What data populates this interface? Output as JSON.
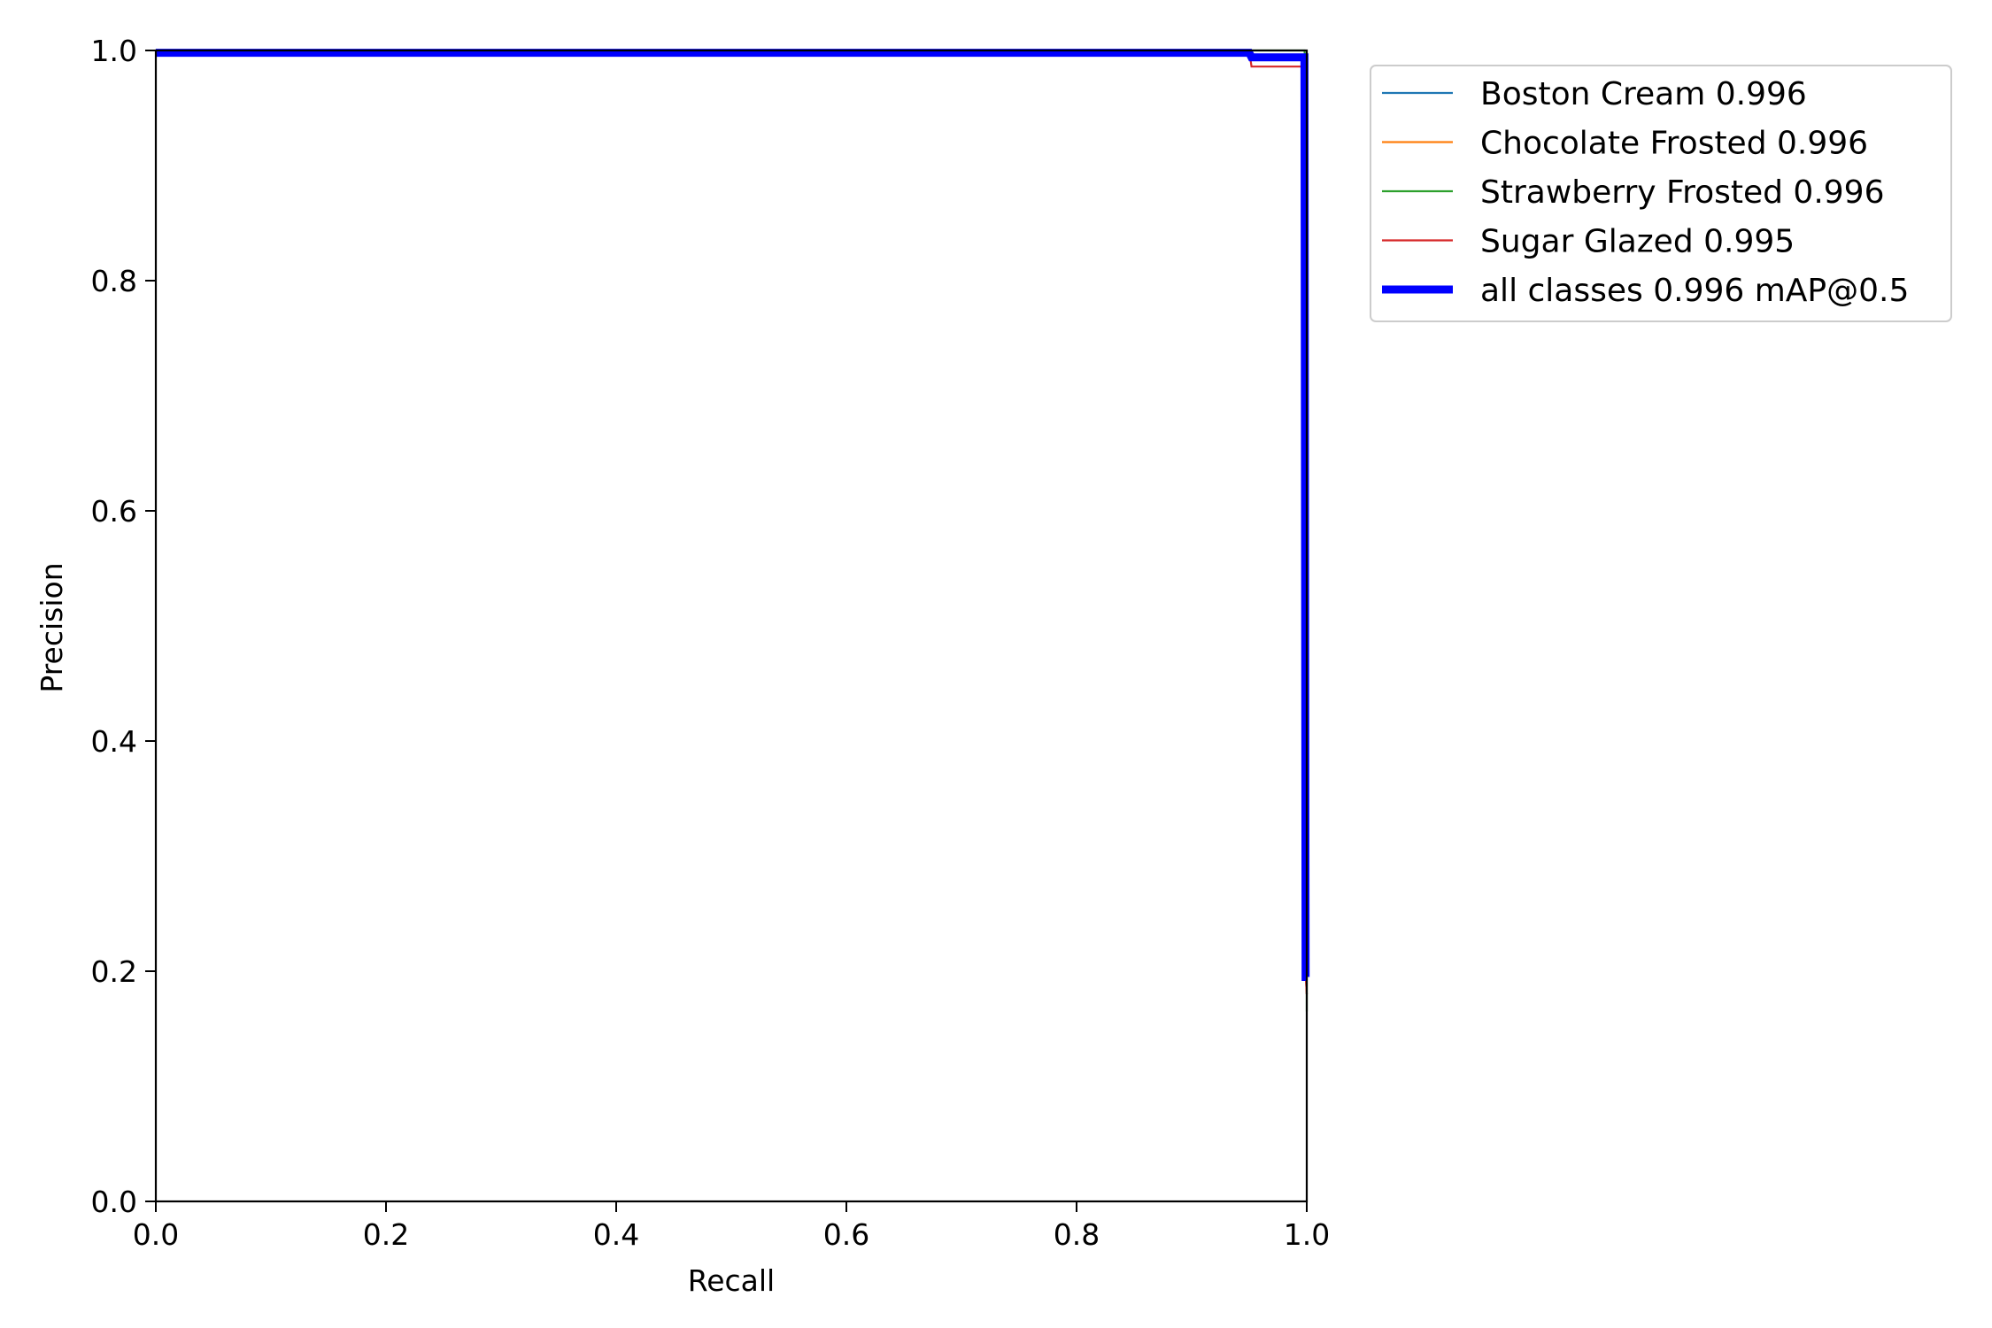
{
  "chart_data": {
    "type": "line",
    "xlabel": "Recall",
    "ylabel": "Precision",
    "xlim": [
      0.0,
      1.0
    ],
    "ylim": [
      0.0,
      1.0
    ],
    "xticks": [
      "0.0",
      "0.2",
      "0.4",
      "0.6",
      "0.8",
      "1.0"
    ],
    "yticks": [
      "0.0",
      "0.2",
      "0.4",
      "0.6",
      "0.8",
      "1.0"
    ],
    "grid": false,
    "legend_position": "outside-top-right",
    "series": [
      {
        "name": "Boston Cream 0.996",
        "color": "#1f77b4",
        "x": [
          0.0,
          0.95,
          0.952,
          0.998,
          0.999,
          1.0
        ],
        "y": [
          1.0,
          1.0,
          0.995,
          0.995,
          0.2,
          0.18
        ]
      },
      {
        "name": "Chocolate Frosted 0.996",
        "color": "#ff7f0e",
        "x": [
          0.0,
          0.95,
          0.952,
          0.998,
          0.999,
          1.0
        ],
        "y": [
          1.0,
          1.0,
          0.995,
          0.995,
          0.2,
          0.18
        ]
      },
      {
        "name": "Strawberry Frosted 0.996",
        "color": "#2ca02c",
        "x": [
          0.0,
          0.998,
          0.999,
          1.0,
          1.0
        ],
        "y": [
          1.0,
          1.0,
          0.99,
          0.99,
          0.165
        ]
      },
      {
        "name": "Sugar Glazed 0.995",
        "color": "#d62728",
        "x": [
          0.0,
          0.95,
          0.952,
          0.998,
          0.999,
          1.0
        ],
        "y": [
          1.0,
          1.0,
          0.986,
          0.986,
          0.2,
          0.18
        ]
      },
      {
        "name": "all classes 0.996 mAP@0.5",
        "color": "#0000ff",
        "thick": true,
        "x": [
          0.0,
          0.95,
          0.952,
          0.998,
          0.999,
          1.0
        ],
        "y": [
          0.998,
          0.998,
          0.994,
          0.994,
          0.195,
          0.195
        ]
      }
    ]
  }
}
